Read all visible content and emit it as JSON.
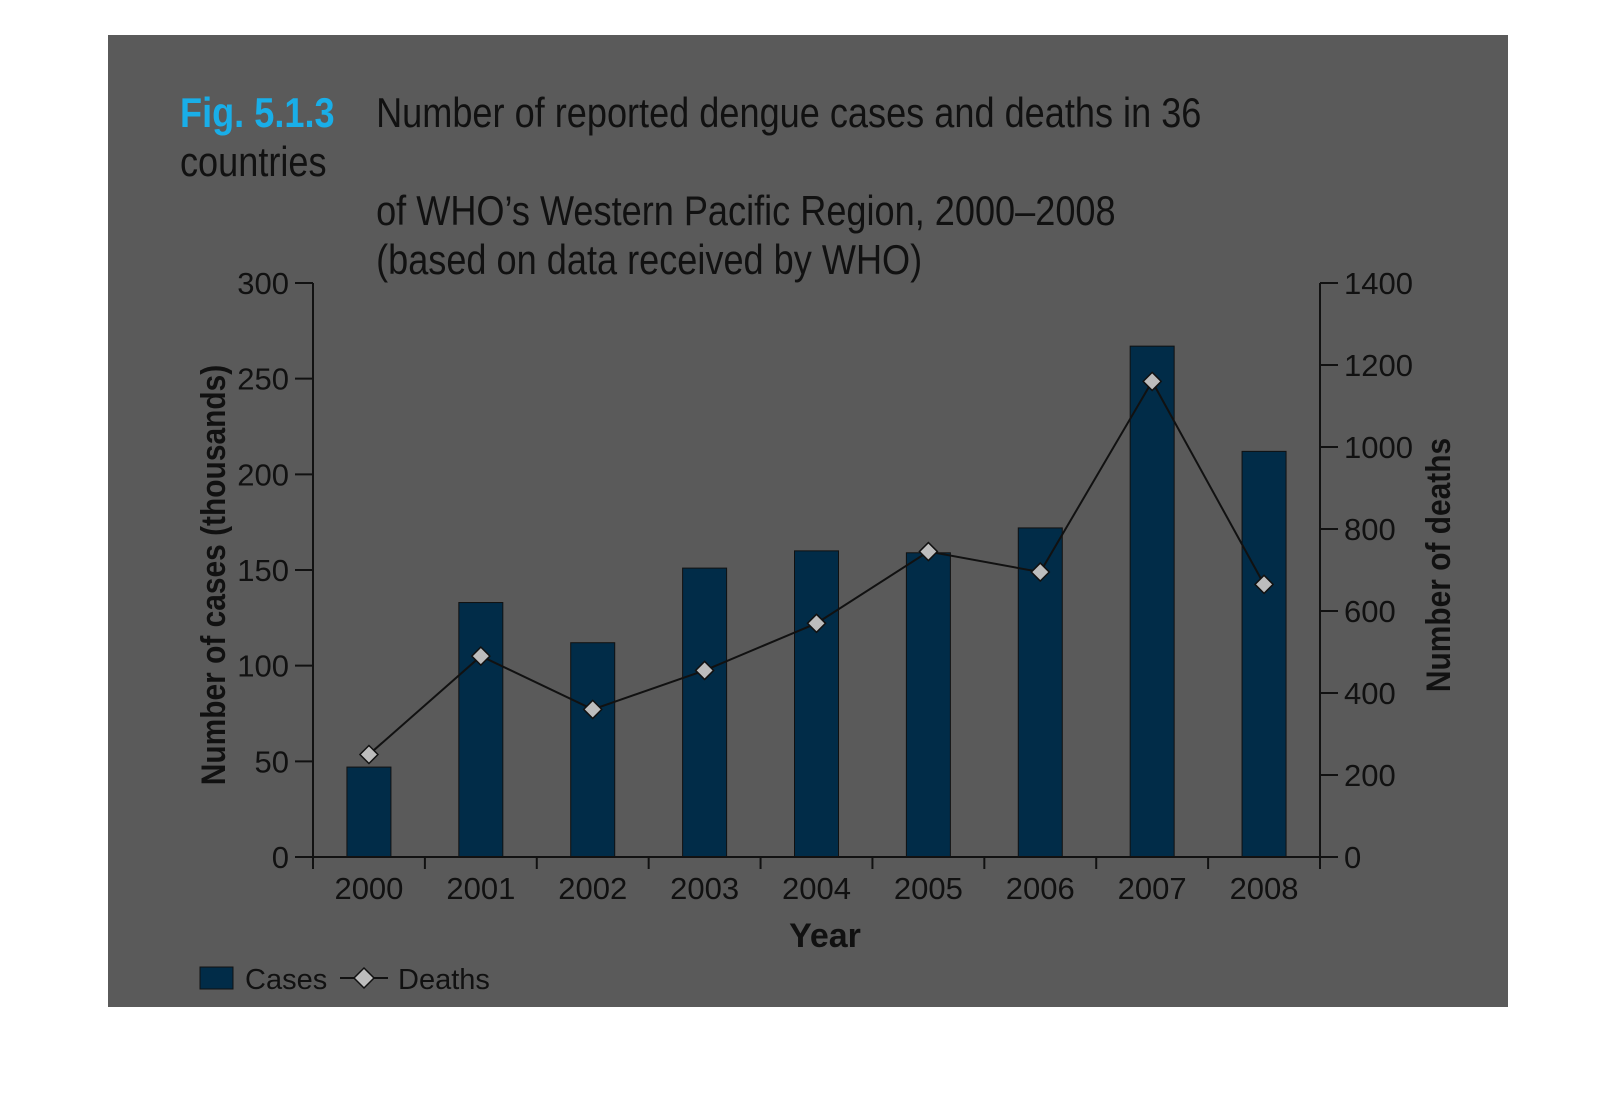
{
  "figure": {
    "label": "Fig. 5.1.3",
    "title_line1": "Number of reported dengue cases and deaths in 36 countries",
    "title_line2": "of WHO’s Western Pacific Region, 2000–2008",
    "title_line3": "(based on data received by WHO)"
  },
  "colors": {
    "panel": "#5a5a5a",
    "bar": "#012c48",
    "accent": "#19aee8",
    "line": "#111111",
    "marker_fill": "#bdbdbd"
  },
  "chart_data": {
    "type": "bar",
    "categories": [
      "2000",
      "2001",
      "2002",
      "2003",
      "2004",
      "2005",
      "2006",
      "2007",
      "2008"
    ],
    "xlabel": "Year",
    "ylabel": "Number of cases (thousands)",
    "y2label": "Number of deaths",
    "ylim": [
      0,
      300
    ],
    "y2lim": [
      0,
      1400
    ],
    "yticks": [
      0,
      50,
      100,
      150,
      200,
      250,
      300
    ],
    "y2ticks": [
      0,
      200,
      400,
      600,
      800,
      1000,
      1200,
      1400
    ],
    "legend_position": "bottom-left",
    "grid": false,
    "series": [
      {
        "name": "Cases",
        "type": "bar",
        "axis": "left",
        "values": [
          47,
          133,
          112,
          151,
          160,
          159,
          172,
          267,
          212
        ]
      },
      {
        "name": "Deaths",
        "type": "line",
        "axis": "right",
        "marker": "diamond",
        "values": [
          250,
          490,
          360,
          455,
          570,
          745,
          695,
          1160,
          665
        ]
      }
    ]
  }
}
